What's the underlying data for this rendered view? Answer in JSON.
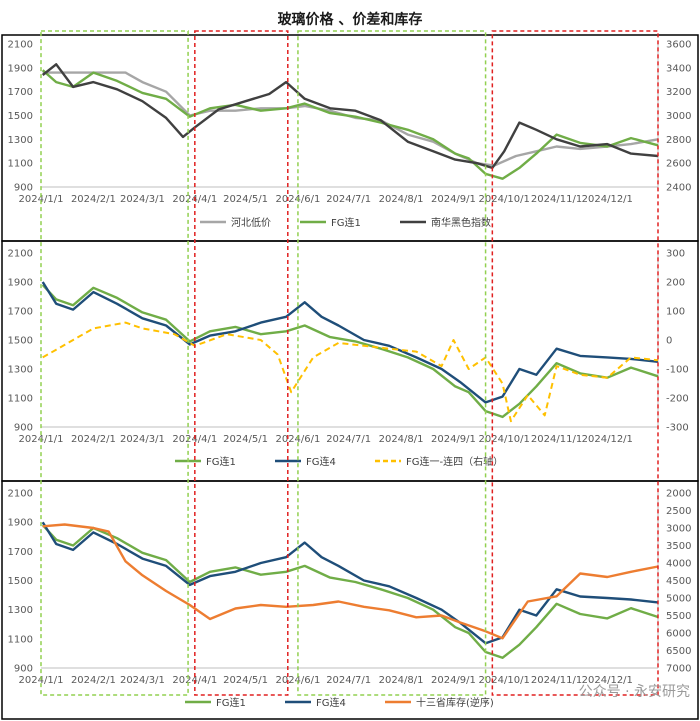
{
  "title": "玻璃价格 、价差和库存",
  "watermark": "公众号 · 永安研究",
  "colors": {
    "hebei": "#a6a6a6",
    "fg1": "#70ad47",
    "nanhua": "#404040",
    "fg4": "#1f4e79",
    "spread": "#ffc000",
    "inventory": "#ed7d31",
    "green_box": "#92d050",
    "red_box": "#e02020"
  },
  "x_ticks": [
    "2024/1/1",
    "2024/2/1",
    "2024/3/1",
    "2024/4/1",
    "2024/5/1",
    "2024/6/1",
    "2024/7/1",
    "2024/8/1",
    "2024/9/1",
    "2024/10/1",
    "2024/11/1",
    "2024/12/1"
  ],
  "highlight_regions": [
    {
      "from": "2024/1/1",
      "to": "2024/3/28",
      "color": "green"
    },
    {
      "from": "2024/4/1",
      "to": "2024/5/26",
      "color": "red"
    },
    {
      "from": "2024/6/1",
      "to": "2024/9/20",
      "color": "green"
    },
    {
      "from": "2024/9/24",
      "to": "2024/12/31",
      "color": "red"
    }
  ],
  "chart_data": [
    {
      "type": "line",
      "title": "玻璃价格 、价差和库存",
      "ylim": [
        900,
        2100
      ],
      "y_ticks": [
        900,
        1100,
        1300,
        1500,
        1700,
        1900,
        2100
      ],
      "y2lim": [
        2400,
        3600
      ],
      "y2_ticks": [
        2400,
        2600,
        2800,
        3000,
        3200,
        3400,
        3600
      ],
      "legend": "bottom",
      "series": [
        {
          "name": "河北低价",
          "axis": "left",
          "x": [
            "2024/1/2",
            "2024/1/15",
            "2024/2/1",
            "2024/2/20",
            "2024/3/1",
            "2024/3/15",
            "2024/3/29",
            "2024/4/10",
            "2024/4/25",
            "2024/5/10",
            "2024/5/25",
            "2024/6/5",
            "2024/6/20",
            "2024/7/5",
            "2024/7/20",
            "2024/8/5",
            "2024/8/20",
            "2024/9/2",
            "2024/9/15",
            "2024/9/25",
            "2024/10/8",
            "2024/10/20",
            "2024/11/1",
            "2024/11/15",
            "2024/12/1",
            "2024/12/15",
            "2024/12/31"
          ],
          "values": [
            1860,
            1860,
            1860,
            1860,
            1780,
            1700,
            1500,
            1540,
            1540,
            1560,
            1560,
            1580,
            1540,
            1480,
            1460,
            1340,
            1280,
            1180,
            1100,
            1080,
            1160,
            1200,
            1240,
            1220,
            1240,
            1260,
            1300
          ]
        },
        {
          "name": "FG连1",
          "axis": "left",
          "x": [
            "2024/1/2",
            "2024/1/10",
            "2024/1/20",
            "2024/2/1",
            "2024/2/15",
            "2024/3/1",
            "2024/3/15",
            "2024/3/29",
            "2024/4/10",
            "2024/4/25",
            "2024/5/10",
            "2024/5/25",
            "2024/6/5",
            "2024/6/20",
            "2024/7/5",
            "2024/7/20",
            "2024/8/5",
            "2024/8/20",
            "2024/9/2",
            "2024/9/10",
            "2024/9/20",
            "2024/9/30",
            "2024/10/10",
            "2024/10/20",
            "2024/11/1",
            "2024/11/15",
            "2024/12/1",
            "2024/12/15",
            "2024/12/31"
          ],
          "values": [
            1880,
            1780,
            1740,
            1860,
            1790,
            1690,
            1640,
            1490,
            1560,
            1590,
            1540,
            1560,
            1600,
            1520,
            1490,
            1440,
            1380,
            1300,
            1180,
            1140,
            1010,
            970,
            1060,
            1180,
            1340,
            1270,
            1240,
            1310,
            1250
          ]
        },
        {
          "name": "南华黑色指数",
          "axis": "right",
          "x": [
            "2024/1/2",
            "2024/1/10",
            "2024/1/20",
            "2024/2/1",
            "2024/2/15",
            "2024/3/1",
            "2024/3/15",
            "2024/3/25",
            "2024/4/1",
            "2024/4/15",
            "2024/5/1",
            "2024/5/15",
            "2024/5/25",
            "2024/6/5",
            "2024/6/20",
            "2024/7/5",
            "2024/7/20",
            "2024/8/5",
            "2024/8/20",
            "2024/9/2",
            "2024/9/15",
            "2024/9/24",
            "2024/10/1",
            "2024/10/10",
            "2024/10/20",
            "2024/11/1",
            "2024/11/15",
            "2024/12/1",
            "2024/12/15",
            "2024/12/31"
          ],
          "values": [
            3340,
            3430,
            3240,
            3280,
            3220,
            3120,
            2980,
            2820,
            2900,
            3050,
            3120,
            3180,
            3280,
            3140,
            3060,
            3040,
            2960,
            2780,
            2700,
            2630,
            2600,
            2560,
            2700,
            2940,
            2880,
            2800,
            2740,
            2760,
            2680,
            2660
          ]
        }
      ]
    },
    {
      "type": "line",
      "ylim": [
        900,
        2100
      ],
      "y_ticks": [
        900,
        1100,
        1300,
        1500,
        1700,
        1900,
        2100
      ],
      "y2lim": [
        -300,
        300
      ],
      "y2_ticks": [
        -300,
        -200,
        -100,
        0,
        100,
        200,
        300
      ],
      "legend": "bottom",
      "series": [
        {
          "name": "FG连1",
          "axis": "left",
          "x": [
            "2024/1/2",
            "2024/1/10",
            "2024/1/20",
            "2024/2/1",
            "2024/2/15",
            "2024/3/1",
            "2024/3/15",
            "2024/3/29",
            "2024/4/10",
            "2024/4/25",
            "2024/5/10",
            "2024/5/25",
            "2024/6/5",
            "2024/6/20",
            "2024/7/5",
            "2024/7/20",
            "2024/8/5",
            "2024/8/20",
            "2024/9/2",
            "2024/9/10",
            "2024/9/20",
            "2024/9/30",
            "2024/10/10",
            "2024/10/20",
            "2024/11/1",
            "2024/11/15",
            "2024/12/1",
            "2024/12/15",
            "2024/12/31"
          ],
          "values": [
            1880,
            1780,
            1740,
            1860,
            1790,
            1690,
            1640,
            1490,
            1560,
            1590,
            1540,
            1560,
            1600,
            1520,
            1490,
            1440,
            1380,
            1300,
            1180,
            1140,
            1010,
            970,
            1060,
            1180,
            1340,
            1270,
            1240,
            1310,
            1250
          ]
        },
        {
          "name": "FG连4",
          "axis": "left",
          "x": [
            "2024/1/2",
            "2024/1/10",
            "2024/1/20",
            "2024/2/1",
            "2024/2/15",
            "2024/3/1",
            "2024/3/15",
            "2024/3/29",
            "2024/4/10",
            "2024/4/25",
            "2024/5/10",
            "2024/5/25",
            "2024/6/5",
            "2024/6/15",
            "2024/6/25",
            "2024/7/10",
            "2024/7/25",
            "2024/8/10",
            "2024/8/25",
            "2024/9/5",
            "2024/9/20",
            "2024/9/30",
            "2024/10/10",
            "2024/10/20",
            "2024/11/1",
            "2024/11/15",
            "2024/12/1",
            "2024/12/15",
            "2024/12/31"
          ],
          "values": [
            1900,
            1750,
            1710,
            1830,
            1750,
            1650,
            1600,
            1470,
            1530,
            1560,
            1620,
            1660,
            1760,
            1660,
            1600,
            1500,
            1460,
            1380,
            1300,
            1210,
            1070,
            1110,
            1300,
            1260,
            1440,
            1390,
            1380,
            1370,
            1350
          ]
        },
        {
          "name": "FG连一-连四（右轴）",
          "axis": "right",
          "x": [
            "2024/1/2",
            "2024/1/20",
            "2024/2/1",
            "2024/2/20",
            "2024/3/1",
            "2024/3/20",
            "2024/4/1",
            "2024/4/20",
            "2024/5/10",
            "2024/5/20",
            "2024/5/28",
            "2024/6/10",
            "2024/6/25",
            "2024/7/10",
            "2024/7/25",
            "2024/8/10",
            "2024/8/25",
            "2024/9/1",
            "2024/9/10",
            "2024/9/20",
            "2024/9/30",
            "2024/10/5",
            "2024/10/15",
            "2024/10/25",
            "2024/11/1",
            "2024/11/15",
            "2024/12/1",
            "2024/12/15",
            "2024/12/31"
          ],
          "values": [
            -60,
            0,
            40,
            60,
            40,
            20,
            -20,
            20,
            0,
            -50,
            -180,
            -60,
            -10,
            -20,
            -30,
            -40,
            -90,
            0,
            -100,
            -60,
            -150,
            -280,
            -190,
            -260,
            -90,
            -120,
            -130,
            -60,
            -70
          ]
        }
      ]
    },
    {
      "type": "line",
      "ylim": [
        900,
        2100
      ],
      "y_ticks": [
        900,
        1100,
        1300,
        1500,
        1700,
        1900,
        2100
      ],
      "y2lim": [
        7000,
        2000
      ],
      "y2_ticks": [
        2000,
        2500,
        3000,
        3500,
        4000,
        4500,
        5000,
        5500,
        6000,
        6500,
        7000
      ],
      "y2_reversed": true,
      "legend": "bottom",
      "series": [
        {
          "name": "FG连1",
          "axis": "left",
          "x": [
            "2024/1/2",
            "2024/1/10",
            "2024/1/20",
            "2024/2/1",
            "2024/2/15",
            "2024/3/1",
            "2024/3/15",
            "2024/3/29",
            "2024/4/10",
            "2024/4/25",
            "2024/5/10",
            "2024/5/25",
            "2024/6/5",
            "2024/6/20",
            "2024/7/5",
            "2024/7/20",
            "2024/8/5",
            "2024/8/20",
            "2024/9/2",
            "2024/9/10",
            "2024/9/20",
            "2024/9/30",
            "2024/10/10",
            "2024/10/20",
            "2024/11/1",
            "2024/11/15",
            "2024/12/1",
            "2024/12/15",
            "2024/12/31"
          ],
          "values": [
            1880,
            1780,
            1740,
            1860,
            1790,
            1690,
            1640,
            1490,
            1560,
            1590,
            1540,
            1560,
            1600,
            1520,
            1490,
            1440,
            1380,
            1300,
            1180,
            1140,
            1010,
            970,
            1060,
            1180,
            1340,
            1270,
            1240,
            1310,
            1250
          ]
        },
        {
          "name": "FG连4",
          "axis": "left",
          "x": [
            "2024/1/2",
            "2024/1/10",
            "2024/1/20",
            "2024/2/1",
            "2024/2/15",
            "2024/3/1",
            "2024/3/15",
            "2024/3/29",
            "2024/4/10",
            "2024/4/25",
            "2024/5/10",
            "2024/5/25",
            "2024/6/5",
            "2024/6/15",
            "2024/6/25",
            "2024/7/10",
            "2024/7/25",
            "2024/8/10",
            "2024/8/25",
            "2024/9/5",
            "2024/9/20",
            "2024/9/30",
            "2024/10/10",
            "2024/10/20",
            "2024/11/1",
            "2024/11/15",
            "2024/12/1",
            "2024/12/15",
            "2024/12/31"
          ],
          "values": [
            1900,
            1750,
            1710,
            1830,
            1750,
            1650,
            1600,
            1470,
            1530,
            1560,
            1620,
            1660,
            1760,
            1660,
            1600,
            1500,
            1460,
            1380,
            1300,
            1210,
            1070,
            1110,
            1300,
            1260,
            1440,
            1390,
            1380,
            1370,
            1350
          ]
        },
        {
          "name": "十三省库存(逆序)",
          "axis": "right",
          "x": [
            "2024/1/2",
            "2024/1/15",
            "2024/2/1",
            "2024/2/10",
            "2024/2/20",
            "2024/3/1",
            "2024/3/15",
            "2024/3/29",
            "2024/4/10",
            "2024/4/25",
            "2024/5/10",
            "2024/5/25",
            "2024/6/10",
            "2024/6/25",
            "2024/7/10",
            "2024/7/25",
            "2024/8/10",
            "2024/8/25",
            "2024/9/5",
            "2024/9/20",
            "2024/9/30",
            "2024/10/15",
            "2024/11/1",
            "2024/11/15",
            "2024/12/1",
            "2024/12/15",
            "2024/12/31"
          ],
          "values": [
            2950,
            2900,
            3000,
            3100,
            3950,
            4350,
            4800,
            5200,
            5600,
            5300,
            5200,
            5250,
            5200,
            5100,
            5250,
            5350,
            5550,
            5500,
            5700,
            5950,
            6150,
            5100,
            4950,
            4300,
            4400,
            4250,
            4100
          ]
        }
      ]
    }
  ]
}
